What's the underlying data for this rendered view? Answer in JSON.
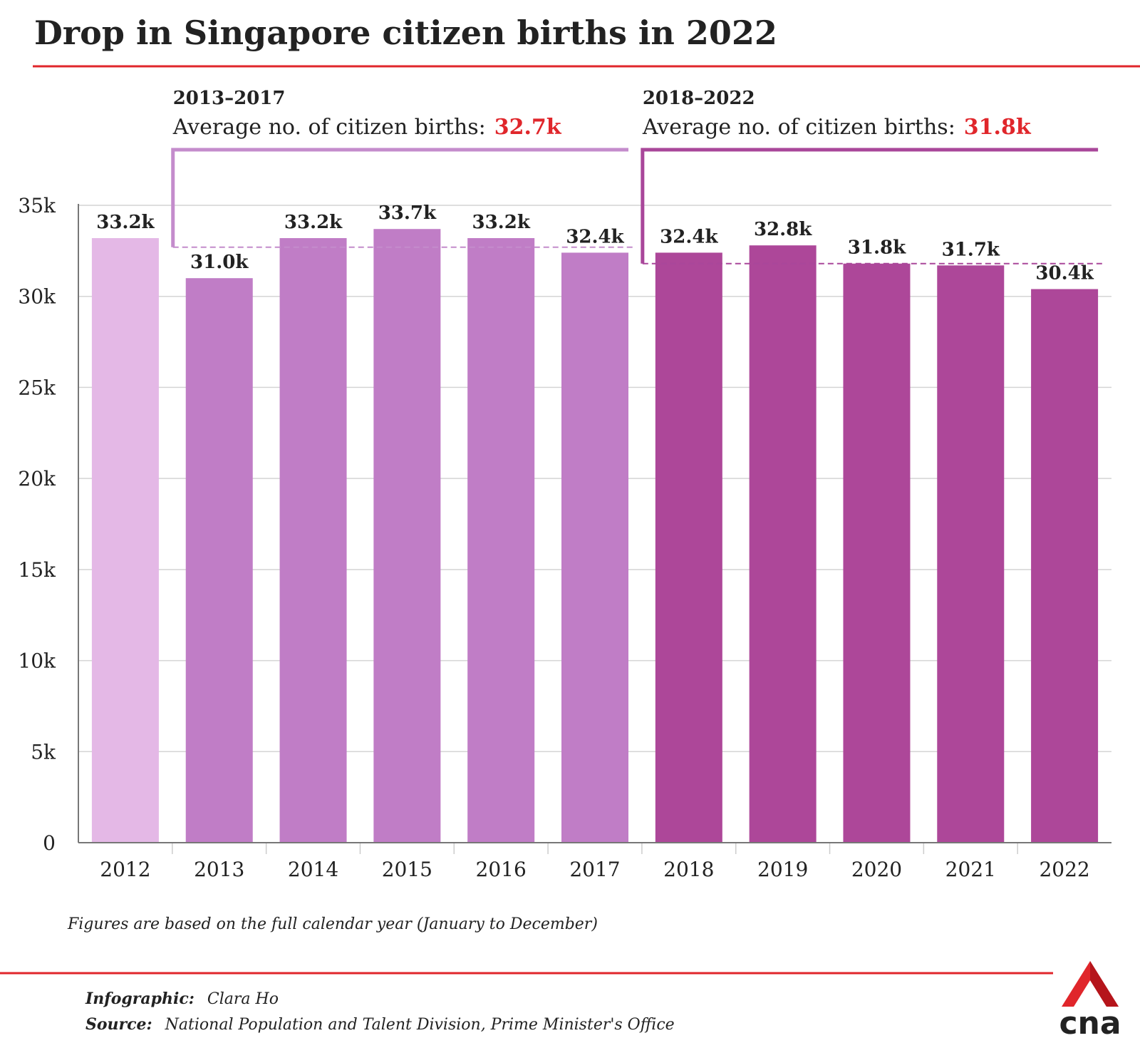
{
  "chart_data": {
    "type": "bar",
    "title": "Drop in Singapore citizen births in 2022",
    "categories": [
      "2012",
      "2013",
      "2014",
      "2015",
      "2016",
      "2017",
      "2018",
      "2019",
      "2020",
      "2021",
      "2022"
    ],
    "values": [
      33.2,
      31.0,
      33.2,
      33.7,
      33.2,
      32.4,
      32.4,
      32.8,
      31.8,
      31.7,
      30.4
    ],
    "value_labels": [
      "33.2k",
      "31.0k",
      "33.2k",
      "33.7k",
      "33.2k",
      "32.4k",
      "32.4k",
      "32.8k",
      "31.8k",
      "31.7k",
      "30.4k"
    ],
    "colors": [
      "#e4b8e6",
      "#c07dc6",
      "#c07dc6",
      "#c07dc6",
      "#c07dc6",
      "#c07dc6",
      "#ad4799",
      "#ad4799",
      "#ad4799",
      "#ad4799",
      "#ad4799"
    ],
    "ylim": [
      0,
      35
    ],
    "yticks": [
      0,
      {
        "value": 5,
        "label": "5k"
      },
      {
        "value": 10,
        "label": "10k"
      },
      {
        "value": 15,
        "label": "15k"
      },
      {
        "value": 20,
        "label": "20k"
      },
      {
        "value": 25,
        "label": "25k"
      },
      {
        "value": 30,
        "label": "30k"
      },
      {
        "value": 35,
        "label": "35k"
      }
    ],
    "grid": true,
    "averages": [
      {
        "period": "2013–2017",
        "label": "Average no. of citizen births:",
        "value": 32.7,
        "value_label": "32.7k",
        "color": "#c48ccc"
      },
      {
        "period": "2018–2022",
        "label": "Average no. of citizen births:",
        "value": 31.8,
        "value_label": "31.8k",
        "color": "#a9479a"
      }
    ],
    "note": "Figures are based on the full calendar year (January to December)",
    "credits": [
      {
        "label": "Infographic:",
        "text": "Clara Ho"
      },
      {
        "label": "Source:",
        "text": "National Population and Talent Division, Prime Minister's Office"
      }
    ],
    "logo": "cna"
  }
}
